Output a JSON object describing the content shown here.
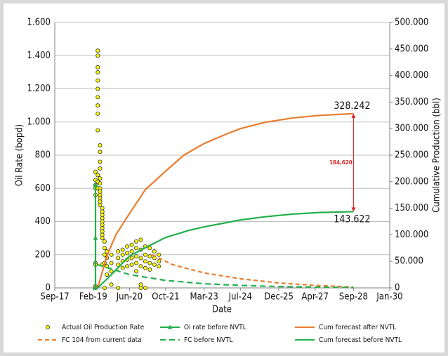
{
  "chart_data": {
    "type": "line",
    "x_label": "Date",
    "y_label": "Oil Rate (bopd)",
    "y2_label": "Cumulative Production (bbl)",
    "xlim": [
      "2017-09",
      "2030-01"
    ],
    "xticks": [
      {
        "value": "2017-09",
        "label": "Sep-17"
      },
      {
        "value": "2019-02",
        "label": "Feb-19"
      },
      {
        "value": "2020-06",
        "label": "Jun-20"
      },
      {
        "value": "2021-10",
        "label": "Oct-21"
      },
      {
        "value": "2023-03",
        "label": "Mar-23"
      },
      {
        "value": "2024-07",
        "label": "Jul-24"
      },
      {
        "value": "2025-12",
        "label": "Dec-25"
      },
      {
        "value": "2027-04",
        "label": "Apr-27"
      },
      {
        "value": "2028-09",
        "label": "Sep-28"
      },
      {
        "value": "2030-01",
        "label": "Jan-30"
      }
    ],
    "ylim": [
      0,
      1600
    ],
    "yticks": [
      0,
      200,
      400,
      600,
      800,
      {
        "value": 1000,
        "label": "1.000"
      },
      {
        "value": 1200,
        "label": "1.200"
      },
      {
        "value": 1400,
        "label": "1.400"
      },
      {
        "value": 1600,
        "label": "1.600"
      }
    ],
    "y2lim": [
      0,
      500000
    ],
    "y2ticks": [
      0,
      {
        "value": 50000,
        "label": "50.000"
      },
      {
        "value": 100000,
        "label": "100.000"
      },
      {
        "value": 150000,
        "label": "150.000"
      },
      {
        "value": 200000,
        "label": "200.000"
      },
      {
        "value": 250000,
        "label": "250.000"
      },
      {
        "value": 300000,
        "label": "300.000"
      },
      {
        "value": 350000,
        "label": "350.000"
      },
      {
        "value": 400000,
        "label": "400.000"
      },
      {
        "value": 450000,
        "label": "450.000"
      },
      {
        "value": 500000,
        "label": "500.000"
      }
    ],
    "grid": true,
    "series": [
      {
        "name": "Actual Oil Production Rate",
        "type": "scatter",
        "color": "#ffff00",
        "x": [
          "2019-03",
          "2019-03",
          "2019-03",
          "2019-03",
          "2019-03",
          "2019-03",
          "2019-03",
          "2019-03",
          "2019-03",
          "2019-04",
          "2019-04",
          "2019-04",
          "2019-04",
          "2019-04",
          "2019-04",
          "2019-04",
          "2019-04",
          "2019-04",
          "2019-04",
          "2019-04",
          "2019-04",
          "2019-04",
          "2019-05",
          "2019-05",
          "2019-05",
          "2019-05",
          "2019-05",
          "2019-05",
          "2019-05",
          "2019-05",
          "2019-05",
          "2019-05",
          "2019-05",
          "2019-05",
          "2019-06",
          "2019-06",
          "2019-06",
          "2019-06",
          "2019-06",
          "2019-06",
          "2019-06",
          "2019-06",
          "2019-06",
          "2019-06",
          "2019-06",
          "2019-07",
          "2019-07",
          "2019-07",
          "2019-07",
          "2019-07",
          "2019-08",
          "2019-08",
          "2019-08",
          "2019-08",
          "2019-10",
          "2019-10",
          "2019-10",
          "2019-10",
          "2020-01",
          "2020-01",
          "2020-01",
          "2020-01",
          "2020-03",
          "2020-03",
          "2020-03",
          "2020-03",
          "2020-05",
          "2020-05",
          "2020-05",
          "2020-05",
          "2020-07",
          "2020-07",
          "2020-07",
          "2020-07",
          "2020-09",
          "2020-09",
          "2020-09",
          "2020-09",
          "2020-09",
          "2020-11",
          "2020-11",
          "2020-11",
          "2020-11",
          "2020-11",
          "2020-11",
          "2021-01",
          "2021-01",
          "2021-01",
          "2021-01",
          "2021-01",
          "2021-03",
          "2021-03",
          "2021-03",
          "2021-03",
          "2021-05",
          "2021-05",
          "2021-05",
          "2021-07",
          "2021-07",
          "2021-07"
        ],
        "values": [
          700,
          650,
          620,
          600,
          560,
          150,
          140,
          10,
          0,
          1430,
          1400,
          1330,
          1300,
          1250,
          1200,
          1150,
          1100,
          1050,
          950,
          680,
          640,
          600,
          860,
          820,
          760,
          720,
          660,
          630,
          600,
          580,
          560,
          540,
          520,
          500,
          480,
          460,
          440,
          420,
          400,
          380,
          360,
          340,
          320,
          300,
          140,
          280,
          240,
          200,
          150,
          0,
          220,
          180,
          130,
          80,
          200,
          150,
          100,
          20,
          220,
          180,
          140,
          0,
          230,
          200,
          160,
          120,
          250,
          210,
          170,
          130,
          260,
          220,
          180,
          140,
          280,
          240,
          190,
          150,
          100,
          290,
          230,
          180,
          130,
          20,
          0,
          250,
          200,
          160,
          120,
          0,
          240,
          190,
          150,
          110,
          220,
          180,
          140,
          200,
          160,
          130
        ]
      },
      {
        "name": "Oi rate before NVTL",
        "type": "line",
        "color": "#22b04b",
        "marker": "triangle",
        "x": [
          "2019-03",
          "2019-03",
          "2019-03"
        ],
        "values": [
          620,
          300,
          0
        ]
      },
      {
        "name": "Cum forecast after NVTL",
        "type": "line",
        "color": "#e87d2f",
        "axis": "y2",
        "x": [
          "2019-04",
          "2019-08",
          "2019-12",
          "2020-06",
          "2021-01",
          "2021-10",
          "2022-06",
          "2023-03",
          "2024-01",
          "2024-07",
          "2025-06",
          "2026-06",
          "2027-06",
          "2028-09"
        ],
        "values": [
          0,
          60000,
          100000,
          140000,
          185000,
          220000,
          250000,
          272000,
          290000,
          300000,
          312000,
          320000,
          325000,
          328242
        ]
      },
      {
        "name": "FC 104 from current data",
        "type": "line",
        "color": "#e87d2f",
        "dash": "6,4",
        "x": [
          "2021-04",
          "2022-01",
          "2023-03",
          "2024-07",
          "2025-12",
          "2027-04",
          "2028-09"
        ],
        "values": [
          200,
          140,
          90,
          55,
          30,
          15,
          5
        ]
      },
      {
        "name": "FC before NVTL",
        "type": "line",
        "color": "#22b04b",
        "dash": "8,5",
        "x": [
          "2019-04",
          "2020-06",
          "2021-10",
          "2023-03",
          "2024-07",
          "2025-12",
          "2028-09"
        ],
        "values": [
          140,
          80,
          45,
          25,
          15,
          8,
          2
        ]
      },
      {
        "name": "Cum forecast before NVTL",
        "type": "line",
        "color": "#22b04b",
        "axis": "y2",
        "x": [
          "2019-04",
          "2019-10",
          "2020-06",
          "2021-03",
          "2021-10",
          "2022-08",
          "2023-03",
          "2024-01",
          "2024-07",
          "2025-06",
          "2026-06",
          "2027-06",
          "2028-09"
        ],
        "values": [
          0,
          25000,
          60000,
          80000,
          95000,
          108000,
          115000,
          123000,
          128000,
          134000,
          139000,
          142000,
          143622
        ]
      }
    ],
    "annotations": [
      {
        "text": "328.242",
        "x": "2028-09",
        "y": 328242,
        "axis": "y2",
        "place": "above"
      },
      {
        "text": "143.622",
        "x": "2028-09",
        "y": 143622,
        "axis": "y2",
        "place": "below"
      }
    ],
    "arrow": {
      "label": "184,620",
      "x": "2028-09",
      "from": 143622,
      "to": 328242,
      "color": "#e02020"
    }
  }
}
